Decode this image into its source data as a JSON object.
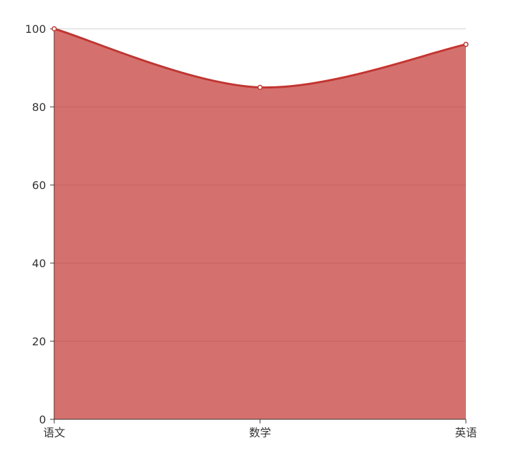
{
  "chart_data": {
    "type": "area",
    "title": "",
    "xlabel": "",
    "ylabel": "",
    "categories": [
      "语文",
      "数学",
      "英语"
    ],
    "series": [
      {
        "values": [
          100,
          85,
          96
        ]
      }
    ],
    "ylim": [
      0,
      100
    ],
    "yticks": [
      0,
      20,
      40,
      60,
      80,
      100
    ],
    "grid": true,
    "smooth": true,
    "colors": {
      "line": "#c23531",
      "area": "#c23531",
      "area_opacity": 0.7,
      "point_fill": "#ffffff"
    }
  }
}
